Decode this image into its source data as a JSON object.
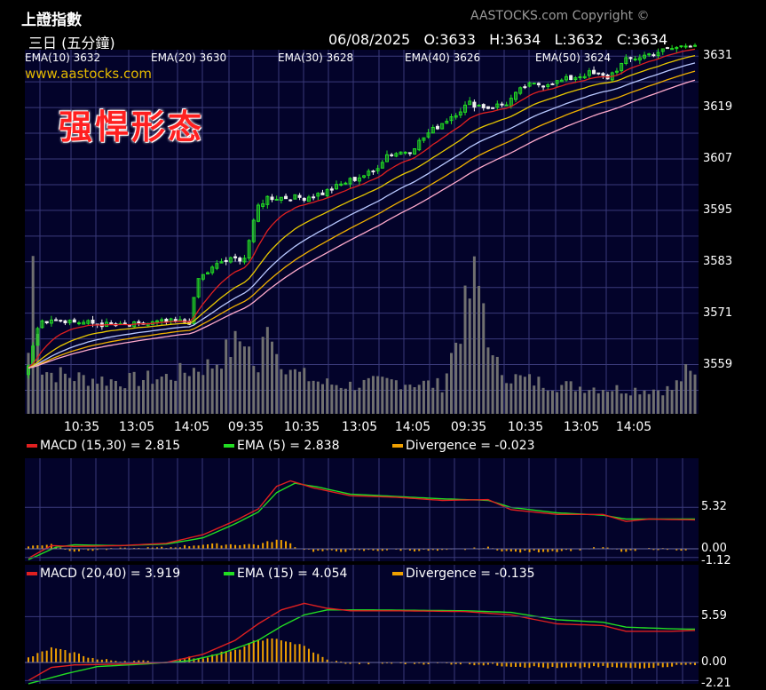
{
  "header": {
    "title": "上證指數",
    "period": "三日 (五分鐘)",
    "copyright": "AASTOCKS.com Copyright ©",
    "date": "06/08/2025",
    "open": "O:3633",
    "high": "H:3634",
    "low": "L:3632",
    "close": "C:3634"
  },
  "legend": [
    {
      "label": "EMA(10) 3632",
      "color": "#e02020"
    },
    {
      "label": "EMA(20) 3630",
      "color": "#e8c800"
    },
    {
      "label": "EMA(30) 3628",
      "color": "#b8c8ff"
    },
    {
      "label": "EMA(40) 3626",
      "color": "#f0b000"
    },
    {
      "label": "EMA(50) 3624",
      "color": "#ffaacc"
    }
  ],
  "site": "www.aastocks.com",
  "overlay_text": "强悍形态",
  "chart_data": [
    {
      "type": "line",
      "name": "price",
      "x_tick_labels": [
        "10:35",
        "13:05",
        "14:05",
        "09:35",
        "10:35",
        "13:05",
        "14:05",
        "09:35",
        "10:35",
        "13:05",
        "14:05"
      ],
      "y_tick_labels": [
        "3631",
        "3619",
        "3607",
        "3595",
        "3583",
        "3571",
        "3559"
      ],
      "y_ticks": [
        3631,
        3619,
        3607,
        3595,
        3583,
        3571,
        3559
      ],
      "ylim": [
        3547.5,
        3632.5
      ],
      "close_anchors": [
        [
          0,
          3559
        ],
        [
          2,
          3568
        ],
        [
          5,
          3570
        ],
        [
          10,
          3569
        ],
        [
          20,
          3568
        ],
        [
          30,
          3569
        ],
        [
          35,
          3569
        ],
        [
          37,
          3579
        ],
        [
          42,
          3583
        ],
        [
          47,
          3584
        ],
        [
          50,
          3596
        ],
        [
          52,
          3598
        ],
        [
          60,
          3598
        ],
        [
          64,
          3599
        ],
        [
          70,
          3602
        ],
        [
          75,
          3604
        ],
        [
          78,
          3608
        ],
        [
          83,
          3609
        ],
        [
          87,
          3613
        ],
        [
          92,
          3617
        ],
        [
          96,
          3620
        ],
        [
          100,
          3619
        ],
        [
          104,
          3620
        ],
        [
          108,
          3624
        ],
        [
          115,
          3625
        ],
        [
          122,
          3627
        ],
        [
          126,
          3626
        ],
        [
          130,
          3630
        ],
        [
          137,
          3632
        ],
        [
          145,
          3634
        ]
      ],
      "series": [
        {
          "name": "EMA(10)",
          "period": 10,
          "color": "#e02020"
        },
        {
          "name": "EMA(20)",
          "period": 20,
          "color": "#e8c800"
        },
        {
          "name": "EMA(30)",
          "period": 30,
          "color": "#b8c8ff"
        },
        {
          "name": "EMA(40)",
          "period": 40,
          "color": "#f0b000"
        },
        {
          "name": "EMA(50)",
          "period": 50,
          "color": "#ffaacc"
        }
      ],
      "volume_anchors": [
        [
          0,
          30
        ],
        [
          1,
          75
        ],
        [
          3,
          22
        ],
        [
          5,
          20
        ],
        [
          10,
          18
        ],
        [
          20,
          16
        ],
        [
          30,
          18
        ],
        [
          36,
          22
        ],
        [
          40,
          24
        ],
        [
          47,
          38
        ],
        [
          50,
          18
        ],
        [
          52,
          52
        ],
        [
          54,
          30
        ],
        [
          58,
          20
        ],
        [
          64,
          15
        ],
        [
          70,
          14
        ],
        [
          80,
          16
        ],
        [
          90,
          14
        ],
        [
          97,
          65
        ],
        [
          99,
          55
        ],
        [
          101,
          25
        ],
        [
          105,
          18
        ],
        [
          115,
          14
        ],
        [
          130,
          12
        ],
        [
          140,
          12
        ],
        [
          143,
          20
        ],
        [
          145,
          18
        ]
      ]
    },
    {
      "type": "line",
      "name": "MACD (15,30)",
      "legend": [
        {
          "label": "MACD (15,30) = 2.815",
          "color": "#e02020"
        },
        {
          "label": "EMA (5) = 2.838",
          "color": "#22dd22"
        },
        {
          "label": "Divergence = -0.023",
          "color": "#f0a000"
        }
      ],
      "y_tick_labels": [
        "5.32",
        "0.00",
        "-1.12"
      ],
      "y_ticks": [
        5.32,
        0.0,
        -1.12
      ],
      "ylim": [
        -1.6,
        11.6
      ],
      "macd_anchors": [
        [
          0,
          -1.2
        ],
        [
          5,
          0.4
        ],
        [
          10,
          0.3
        ],
        [
          20,
          0.4
        ],
        [
          30,
          0.7
        ],
        [
          38,
          1.8
        ],
        [
          45,
          3.6
        ],
        [
          50,
          5.1
        ],
        [
          54,
          8.0
        ],
        [
          57,
          8.7
        ],
        [
          62,
          7.8
        ],
        [
          70,
          6.8
        ],
        [
          80,
          6.6
        ],
        [
          90,
          6.2
        ],
        [
          100,
          6.3
        ],
        [
          105,
          5.0
        ],
        [
          115,
          4.4
        ],
        [
          125,
          4.4
        ],
        [
          130,
          3.5
        ],
        [
          135,
          3.8
        ],
        [
          145,
          3.7
        ]
      ],
      "signal_anchors": [
        [
          0,
          -1.4
        ],
        [
          6,
          0.2
        ],
        [
          10,
          0.5
        ],
        [
          20,
          0.4
        ],
        [
          30,
          0.6
        ],
        [
          38,
          1.4
        ],
        [
          45,
          3.2
        ],
        [
          50,
          4.7
        ],
        [
          54,
          7.2
        ],
        [
          58,
          8.4
        ],
        [
          63,
          7.9
        ],
        [
          70,
          7.0
        ],
        [
          80,
          6.7
        ],
        [
          90,
          6.4
        ],
        [
          100,
          6.2
        ],
        [
          105,
          5.3
        ],
        [
          115,
          4.6
        ],
        [
          125,
          4.3
        ],
        [
          130,
          3.8
        ],
        [
          135,
          3.8
        ],
        [
          145,
          3.8
        ]
      ]
    },
    {
      "type": "line",
      "name": "MACD (20,40)",
      "legend": [
        {
          "label": "MACD (20,40) = 3.919",
          "color": "#e02020"
        },
        {
          "label": "EMA (15) = 4.054",
          "color": "#22dd22"
        },
        {
          "label": "Divergence = -0.135",
          "color": "#f0a000"
        }
      ],
      "y_tick_labels": [
        "5.59",
        "0.00",
        "-2.21"
      ],
      "y_ticks": [
        5.59,
        0.0,
        -2.21
      ],
      "ylim": [
        -2.6,
        11.9
      ],
      "macd_anchors": [
        [
          0,
          -2.2
        ],
        [
          5,
          -0.6
        ],
        [
          10,
          -0.3
        ],
        [
          20,
          -0.2
        ],
        [
          30,
          0.0
        ],
        [
          38,
          1.0
        ],
        [
          45,
          2.7
        ],
        [
          50,
          4.7
        ],
        [
          55,
          6.4
        ],
        [
          60,
          7.2
        ],
        [
          65,
          6.6
        ],
        [
          70,
          6.3
        ],
        [
          80,
          6.3
        ],
        [
          95,
          6.2
        ],
        [
          105,
          5.8
        ],
        [
          115,
          4.7
        ],
        [
          125,
          4.5
        ],
        [
          130,
          3.8
        ],
        [
          140,
          3.8
        ],
        [
          145,
          3.9
        ]
      ],
      "signal_anchors": [
        [
          0,
          -2.6
        ],
        [
          8,
          -1.4
        ],
        [
          15,
          -0.5
        ],
        [
          25,
          -0.2
        ],
        [
          35,
          0.2
        ],
        [
          42,
          1.1
        ],
        [
          50,
          2.7
        ],
        [
          55,
          4.4
        ],
        [
          60,
          5.8
        ],
        [
          65,
          6.4
        ],
        [
          75,
          6.4
        ],
        [
          95,
          6.3
        ],
        [
          105,
          6.1
        ],
        [
          115,
          5.2
        ],
        [
          125,
          4.9
        ],
        [
          130,
          4.3
        ],
        [
          140,
          4.1
        ],
        [
          145,
          4.05
        ]
      ]
    }
  ],
  "colors": {
    "panel_bg": "#03032a",
    "grid": "#3a3a7a",
    "bull": "#22dd22",
    "bear": "#f0f0f0",
    "volume": "#707070"
  }
}
